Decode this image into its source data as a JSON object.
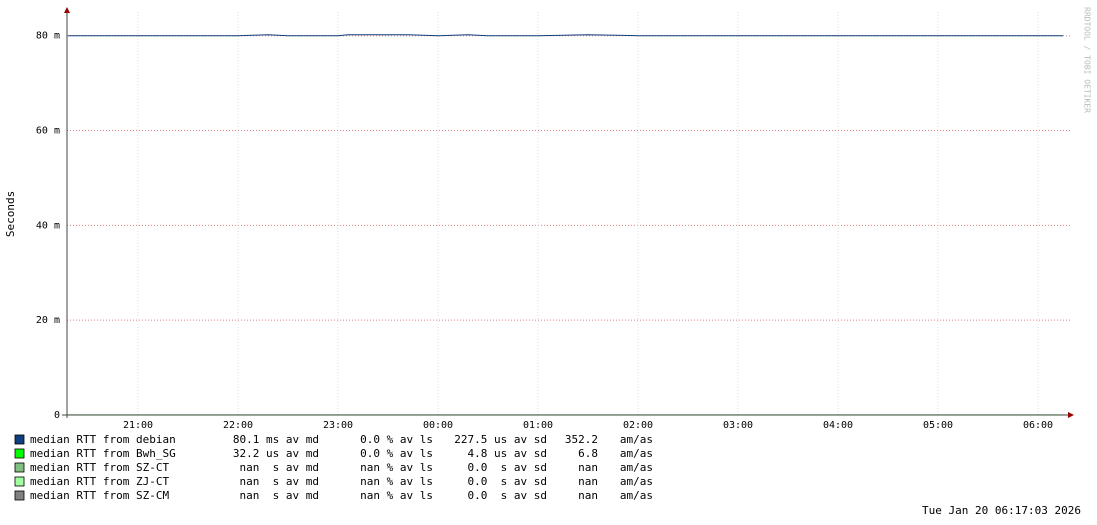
{
  "chart_data": {
    "type": "line",
    "y_label": "Seconds",
    "watermark": "RRDTOOL / TOBI OETIKER",
    "timestamp": "Tue Jan 20 06:17:03 2026",
    "xlim": [
      20.29,
      30.32
    ],
    "xticks": [
      {
        "value": 21,
        "label": "21:00"
      },
      {
        "value": 22,
        "label": "22:00"
      },
      {
        "value": 23,
        "label": "23:00"
      },
      {
        "value": 24,
        "label": "00:00"
      },
      {
        "value": 25,
        "label": "01:00"
      },
      {
        "value": 26,
        "label": "02:00"
      },
      {
        "value": 27,
        "label": "03:00"
      },
      {
        "value": 28,
        "label": "04:00"
      },
      {
        "value": 29,
        "label": "05:00"
      },
      {
        "value": 30,
        "label": "06:00"
      }
    ],
    "ylim": [
      0,
      0.085
    ],
    "yticks": [
      0,
      {
        "value": 0.02,
        "label": "20 m"
      },
      {
        "value": 0.04,
        "label": "40 m"
      },
      {
        "value": 0.06,
        "label": "60 m"
      },
      {
        "value": 0.08,
        "label": "80 m"
      }
    ],
    "grid": true,
    "x": [
      20.3,
      21.0,
      21.5,
      22.0,
      22.3,
      22.5,
      23.0,
      23.1,
      23.4,
      23.7,
      24.0,
      24.3,
      24.5,
      24.7,
      25.0,
      25.5,
      26.0,
      26.5,
      27.0,
      28.0,
      29.0,
      30.0,
      30.25
    ],
    "series": [
      {
        "name": "median RTT from debian",
        "color": "#0f3f7f",
        "stats": [
          "80.1 ms av md",
          "0.0 % av ls",
          "227.5 us av sd",
          "352.2",
          "am/as"
        ],
        "values": [
          0.08,
          0.08,
          0.08,
          0.08,
          0.0802,
          0.08,
          0.08,
          0.0802,
          0.0802,
          0.0802,
          0.08,
          0.0802,
          0.08,
          0.08,
          0.08,
          0.0802,
          0.08,
          0.08,
          0.08,
          0.08,
          0.08,
          0.08,
          0.08
        ]
      },
      {
        "name": "median RTT from Bwh_SG",
        "color": "#00ff00",
        "stats": [
          "32.2 us av md",
          "0.0 % av ls",
          "4.8 us av sd",
          "6.8",
          "am/as"
        ],
        "values": [
          3.22e-05,
          3.22e-05,
          3.22e-05,
          3.22e-05,
          3.22e-05,
          3.22e-05,
          3.22e-05,
          3.22e-05,
          3.22e-05,
          3.22e-05,
          3.22e-05,
          3.22e-05,
          3.22e-05,
          3.22e-05,
          3.22e-05,
          3.22e-05,
          3.22e-05,
          3.22e-05,
          3.22e-05,
          3.22e-05,
          3.22e-05,
          3.22e-05,
          3.22e-05
        ]
      },
      {
        "name": "median RTT from SZ-CT",
        "color": "#80c080",
        "stats": [
          "nan  s av md",
          "nan % av ls",
          "0.0  s av sd",
          "nan",
          "am/as"
        ],
        "values": [
          null,
          null,
          null,
          null,
          null,
          null,
          null,
          null,
          null,
          null,
          null,
          null,
          null,
          null,
          null,
          null,
          null,
          null,
          null,
          null,
          null,
          null,
          null
        ]
      },
      {
        "name": "median RTT from ZJ-CT",
        "color": "#a0ffa0",
        "stats": [
          "nan  s av md",
          "nan % av ls",
          "0.0  s av sd",
          "nan",
          "am/as"
        ],
        "values": [
          null,
          null,
          null,
          null,
          null,
          null,
          null,
          null,
          null,
          null,
          null,
          null,
          null,
          null,
          null,
          null,
          null,
          null,
          null,
          null,
          null,
          null,
          null
        ]
      },
      {
        "name": "median RTT from SZ-CM",
        "color": "#808080",
        "stats": [
          "nan  s av md",
          "nan % av ls",
          "0.0  s av sd",
          "nan",
          "am/as"
        ],
        "values": [
          null,
          null,
          null,
          null,
          null,
          null,
          null,
          null,
          null,
          null,
          null,
          null,
          null,
          null,
          null,
          null,
          null,
          null,
          null,
          null,
          null,
          null,
          null
        ]
      }
    ]
  }
}
